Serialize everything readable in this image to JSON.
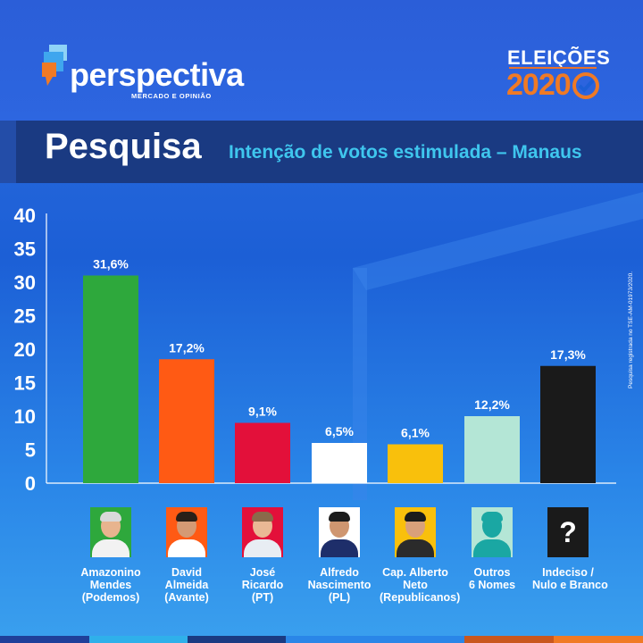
{
  "brand": {
    "name": "perspectiva",
    "tagline": "MERCADO E OPINIÃO"
  },
  "election": {
    "label": "ELEIÇÕES",
    "year": "2020"
  },
  "banner": {
    "title": "Pesquisa",
    "subtitle": "Intenção de votos estimulada – Manaus"
  },
  "source_note": "Pesquisa registrada no TSE-AM-01973/2020.",
  "colors": {
    "background": "#2162dc",
    "banner": "#1a3a82",
    "accent": "#f07a25",
    "subtitle": "#3fc6ee"
  },
  "chart_data": {
    "type": "bar",
    "title": "",
    "xlabel": "",
    "ylabel": "",
    "ylim": [
      0,
      40
    ],
    "yticks": [
      0,
      5,
      10,
      15,
      20,
      25,
      30,
      35,
      40
    ],
    "categories": [
      "Amazonino Mendes (Podemos)",
      "David Almeida (Avante)",
      "José Ricardo (PT)",
      "Alfredo Nascimento (PL)",
      "Cap. Alberto Neto (Republicanos)",
      "Outros 6 Nomes",
      "Indeciso / Nulo e Branco"
    ],
    "values": [
      31.6,
      17.2,
      9.1,
      6.5,
      6.1,
      12.2,
      17.3
    ],
    "drawn_heights": [
      31,
      18.5,
      9,
      6,
      5.8,
      10,
      17.5
    ],
    "value_labels": [
      "31,6%",
      "17,2%",
      "9,1%",
      "6,5%",
      "6,1%",
      "12,2%",
      "17,3%"
    ],
    "colors": [
      "#2ea83c",
      "#ff5a14",
      "#e3103a",
      "#ffffff",
      "#f9c00c",
      "#b4e6d6",
      "#1a1a1a"
    ]
  },
  "candidates": [
    {
      "lines": [
        "Amazonino",
        "Mendes",
        "(Podemos)"
      ],
      "photo": "portrait-photo",
      "bg": "#2ea83c",
      "skin": "#e8b48e",
      "hair": "#d9d9d9",
      "shirt": "#f2f2f2"
    },
    {
      "lines": [
        "David",
        "Almeida",
        "(Avante)"
      ],
      "photo": "portrait-photo",
      "bg": "#ff5a14",
      "skin": "#d49a74",
      "hair": "#2a2018",
      "shirt": "#ffffff"
    },
    {
      "lines": [
        "José",
        "Ricardo",
        "(PT)"
      ],
      "photo": "portrait-photo",
      "bg": "#e3103a",
      "skin": "#eab895",
      "hair": "#8a6a4a",
      "shirt": "#e8edf3"
    },
    {
      "lines": [
        "Alfredo",
        "Nascimento",
        "(PL)"
      ],
      "photo": "portrait-photo",
      "bg": "#ffffff",
      "skin": "#cf9670",
      "hair": "#1d1d1d",
      "shirt": "#1e2e6a"
    },
    {
      "lines": [
        "Cap. Alberto",
        "Neto",
        "(Republicanos)"
      ],
      "photo": "portrait-photo",
      "bg": "#f9c00c",
      "skin": "#d9a07a",
      "hair": "#1b1b1b",
      "shirt": "#2b2b2b"
    },
    {
      "lines": [
        "Outros",
        "6 Nomes"
      ],
      "photo": "person-silhouette",
      "bg": "#b4e6d6",
      "skin": "#1aa7a3",
      "hair": "#1aa7a3",
      "shirt": "#1aa7a3"
    },
    {
      "lines": [
        "Indeciso /",
        "Nulo e Branco"
      ],
      "photo": "question-mark",
      "bg": "#1a1a1a",
      "skin": "",
      "hair": "",
      "shirt": "",
      "glyph": "?"
    }
  ]
}
